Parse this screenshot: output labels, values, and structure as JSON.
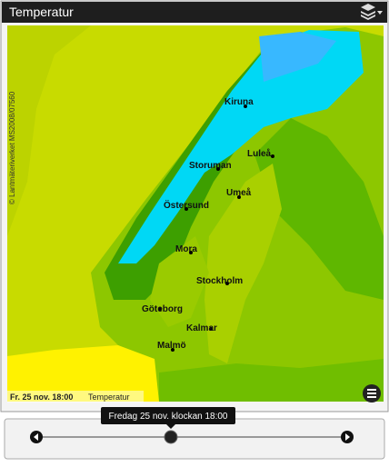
{
  "header": {
    "title": "Temperatur"
  },
  "map": {
    "copyright": "© Lantmäteriverket MS2008/07560",
    "cities": [
      "Kiruna",
      "Luleå",
      "Storuman",
      "Umeå",
      "Östersund",
      "Mora",
      "Stockholm",
      "Göteborg",
      "Kalmar",
      "Malmö"
    ],
    "footer_time": "Fr. 25 nov. 18:00",
    "footer_layer": "Temperatur"
  },
  "timeline": {
    "tooltip": "Fredag 25 nov. klockan 18:00"
  }
}
